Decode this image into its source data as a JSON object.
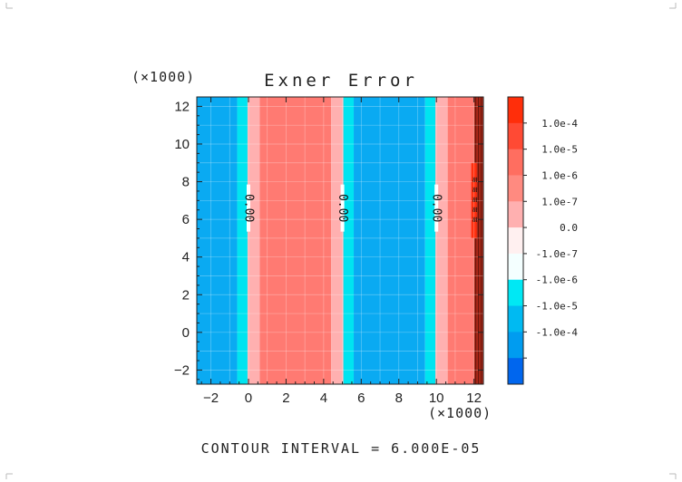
{
  "chart_data": {
    "type": "heatmap",
    "title": "Exner Error",
    "x_scale_label": "(×1000)",
    "y_scale_label": "(×1000)",
    "xlim": [
      -2.75,
      12.5
    ],
    "ylim": [
      -2.75,
      12.5
    ],
    "x_ticks": [
      -2,
      0,
      2,
      4,
      6,
      8,
      10,
      12
    ],
    "y_ticks": [
      -2,
      0,
      2,
      4,
      6,
      8,
      10,
      12
    ],
    "x_tick_labels": [
      "−2",
      "0",
      "2",
      "4",
      "6",
      "8",
      "10",
      "12"
    ],
    "y_tick_labels": [
      "−2",
      "0",
      "2",
      "4",
      "6",
      "8",
      "10",
      "12"
    ],
    "grid": true,
    "bands": [
      {
        "x0": -2.75,
        "x1": -0.6,
        "level": "-1.0e-5"
      },
      {
        "x0": -0.6,
        "x1": -0.05,
        "level": "-1.0e-7"
      },
      {
        "x0": -0.05,
        "x1": 0.6,
        "level": "1.0e-7"
      },
      {
        "x0": 0.6,
        "x1": 4.4,
        "level": "1.0e-5"
      },
      {
        "x0": 4.4,
        "x1": 5.05,
        "level": "1.0e-7"
      },
      {
        "x0": 5.05,
        "x1": 5.6,
        "level": "-1.0e-7"
      },
      {
        "x0": 5.6,
        "x1": 9.4,
        "level": "-1.0e-5"
      },
      {
        "x0": 9.4,
        "x1": 9.95,
        "level": "-1.0e-7"
      },
      {
        "x0": 9.95,
        "x1": 10.6,
        "level": "1.0e-7"
      },
      {
        "x0": 10.6,
        "x1": 12.0,
        "level": "1.0e-5"
      },
      {
        "x0": 12.0,
        "x1": 12.5,
        "level": "edge"
      }
    ],
    "contour_labels": [
      {
        "x": 0.0,
        "y": 6.6,
        "text": "0.00"
      },
      {
        "x": 5.0,
        "y": 6.6,
        "text": "0.00"
      },
      {
        "x": 10.0,
        "y": 6.6,
        "text": "0.00"
      }
    ],
    "colorbar": {
      "levels": [
        {
          "label": "",
          "color": "#ff2e0a"
        },
        {
          "label": "1.0e-4",
          "color": "#ff4a34"
        },
        {
          "label": "1.0e-5",
          "color": "#ff6e60"
        },
        {
          "label": "1.0e-6",
          "color": "#ff8a80"
        },
        {
          "label": "1.0e-7",
          "color": "#ffb0b0"
        },
        {
          "label": "0.0",
          "color": "#fff0f0"
        },
        {
          "label": "-1.0e-7",
          "color": "#f4ffff"
        },
        {
          "label": "-1.0e-6",
          "color": "#00e8f4"
        },
        {
          "label": "-1.0e-5",
          "color": "#00baf2"
        },
        {
          "label": "-1.0e-4",
          "color": "#009cf0"
        },
        {
          "label": "",
          "color": "#0066ee"
        }
      ]
    },
    "band_colors": {
      "-1.0e-5": "#0aaaf2",
      "-1.0e-7": "#00e4f0",
      "1.0e-7": "#ffb0b0",
      "1.0e-5": "#ff7a72",
      "edge": "#a82818"
    }
  },
  "footer": {
    "contour_interval": "CONTOUR INTERVAL = 6.000E-05"
  }
}
